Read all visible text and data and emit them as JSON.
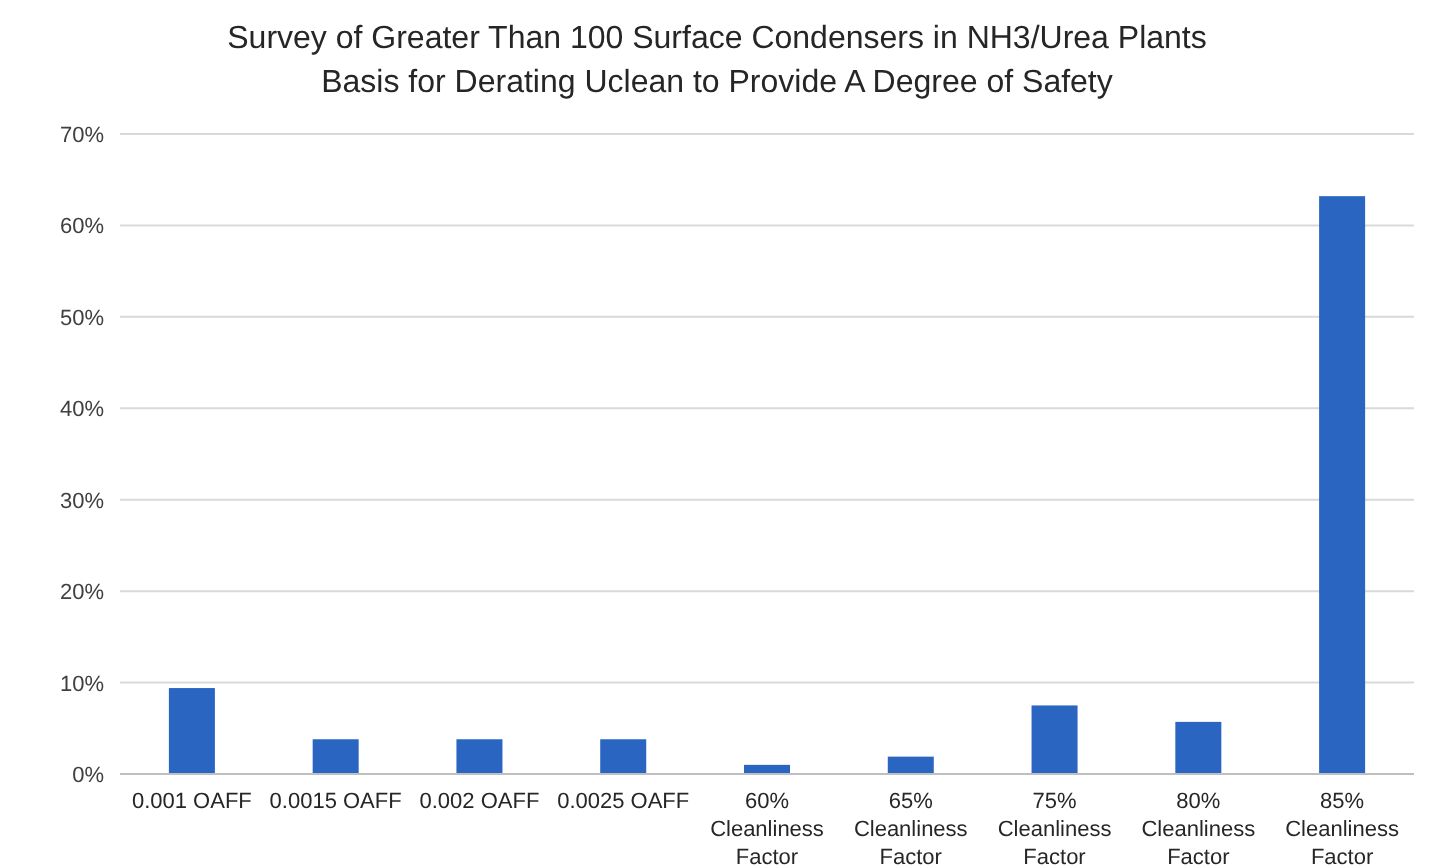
{
  "chart_data": {
    "type": "bar",
    "title": "Survey of Greater Than 100 Surface Condensers in NH3/Urea Plants\nBasis for Derating Uclean to Provide A Degree of Safety",
    "categories": [
      "0.001 OAFF",
      "0.0015 OAFF",
      "0.002 OAFF",
      "0.0025 OAFF",
      "60% Cleanliness Factor",
      "65% Cleanliness Factor",
      "75% Cleanliness Factor",
      "80% Cleanliness Factor",
      "85% Cleanliness Factor"
    ],
    "values": [
      9.4,
      3.8,
      3.8,
      3.8,
      1.0,
      1.9,
      7.5,
      5.7,
      63.2
    ],
    "color": "#2a65c2",
    "ylim": [
      0,
      70
    ],
    "yticks": [
      {
        "value": 0,
        "label": "0%"
      },
      {
        "value": 10,
        "label": "10%"
      },
      {
        "value": 20,
        "label": "20%"
      },
      {
        "value": 30,
        "label": "30%"
      },
      {
        "value": 40,
        "label": "40%"
      },
      {
        "value": 50,
        "label": "50%"
      },
      {
        "value": 60,
        "label": "60%"
      },
      {
        "value": 70,
        "label": "70%"
      }
    ],
    "grid": "y"
  }
}
